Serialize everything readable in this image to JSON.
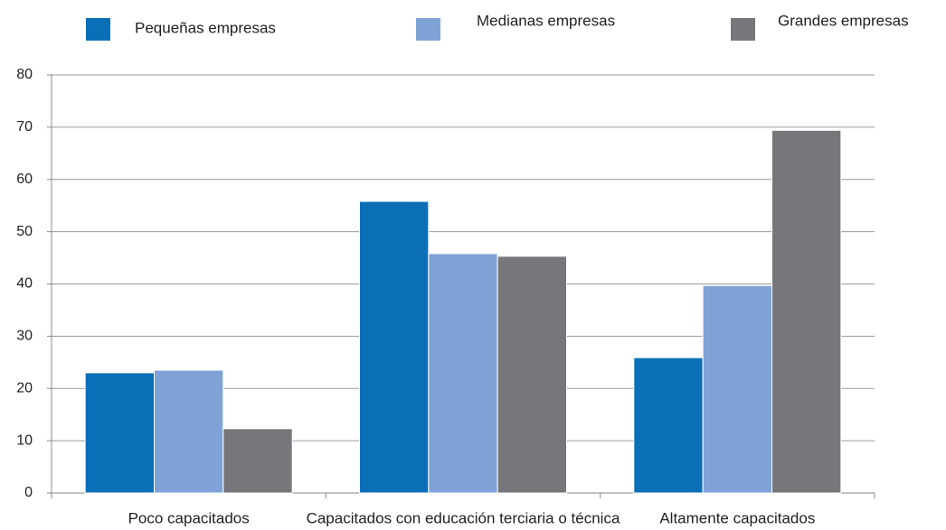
{
  "chart_data": {
    "type": "bar",
    "categories": [
      "Poco capacitados",
      "Capacitados con educación terciaria o técnica",
      "Altamente capacitados"
    ],
    "series": [
      {
        "name": "Pequeñas empresas",
        "color": "#0b6fb8",
        "values": [
          23.0,
          55.8,
          25.9
        ]
      },
      {
        "name": "Medianas empresas",
        "color": "#7fa3d7",
        "values": [
          23.5,
          45.8,
          39.7
        ]
      },
      {
        "name": "Grandes empresas",
        "color": "#76777b",
        "values": [
          12.3,
          45.3,
          69.4
        ]
      }
    ],
    "ylim": [
      0,
      80
    ],
    "yticks": [
      0,
      10,
      20,
      30,
      40,
      50,
      60,
      70,
      80
    ],
    "grid": true
  }
}
